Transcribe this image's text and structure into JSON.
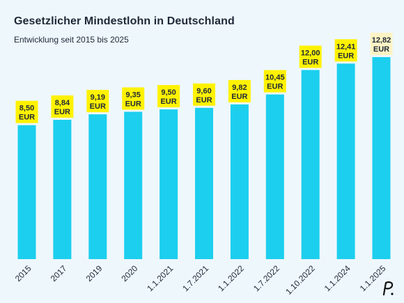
{
  "header": {
    "title": "Gesetzlicher Mindestlohn in Deutschland",
    "subtitle": "Entwicklung seit 2015 bis 2025"
  },
  "colors": {
    "bar": "#1ccfee",
    "label_bg": "#fff200",
    "label_bg_last": "#fdf3c4",
    "text": "#1f2937",
    "background": "#eef7fc"
  },
  "chart_data": {
    "type": "bar",
    "title": "Gesetzlicher Mindestlohn in Deutschland",
    "subtitle": "Entwicklung seit 2015 bis 2025",
    "xlabel": "",
    "ylabel": "",
    "unit": "EUR",
    "categories": [
      "2015",
      "2017",
      "2019",
      "2020",
      "1.1.2021",
      "1.7.2021",
      "1.1.2022",
      "1.7.2022",
      "1.10.2022",
      "1.1.2024",
      "1.1.2025"
    ],
    "values": [
      8.5,
      8.84,
      9.19,
      9.35,
      9.5,
      9.6,
      9.82,
      10.45,
      12.0,
      12.41,
      12.82
    ],
    "value_labels": [
      "8,50",
      "8,84",
      "9,19",
      "9,35",
      "9,50",
      "9,60",
      "9,82",
      "10,45",
      "12,00",
      "12,41",
      "12,82"
    ],
    "ylim": [
      0,
      12.82
    ],
    "grid": false,
    "legend": "none"
  }
}
